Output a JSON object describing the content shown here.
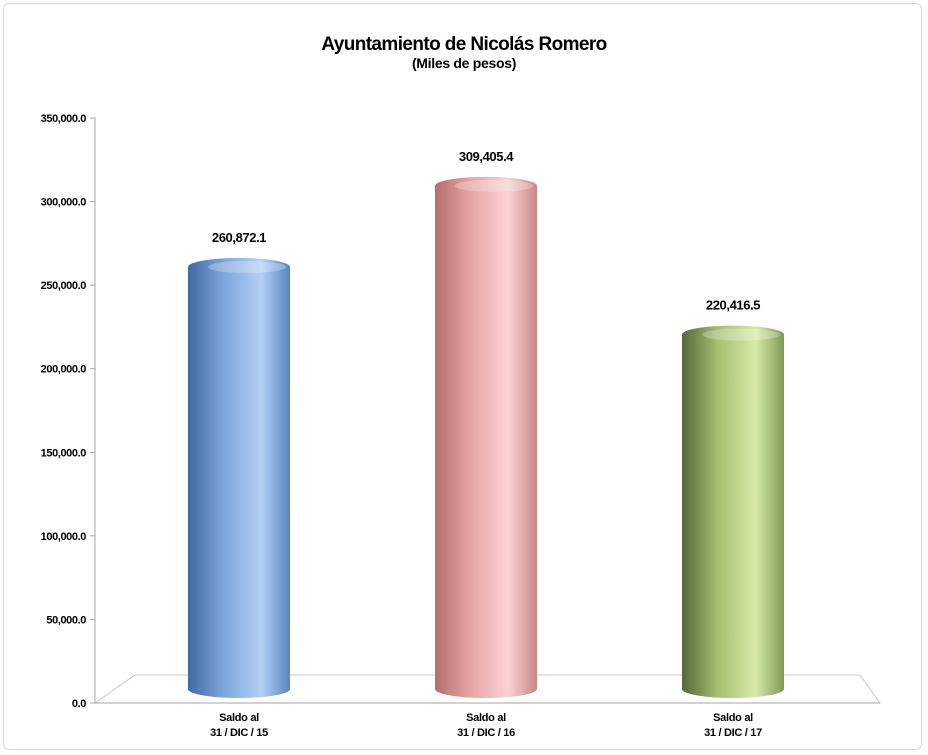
{
  "chart_data": {
    "type": "bar",
    "title": "Ayuntamiento de Nicolás Romero",
    "subtitle": "(Miles de pesos)",
    "categories": [
      [
        "Saldo al",
        "31 / DIC / 15"
      ],
      [
        "Saldo al",
        "31 / DIC / 16"
      ],
      [
        "Saldo al",
        "31 / DIC / 17"
      ]
    ],
    "values": [
      260872.1,
      309405.4,
      220416.5
    ],
    "data_labels": [
      "260,872.1",
      "309,405.4",
      "220,416.5"
    ],
    "colors": [
      "#8fb4e3",
      "#e6a5a5",
      "#bcd78b"
    ],
    "ylim": [
      0,
      350000
    ],
    "yticks": [
      0,
      50000,
      100000,
      150000,
      200000,
      250000,
      300000,
      350000
    ],
    "ytick_labels": [
      "0.0",
      "50,000.0",
      "100,000.0",
      "150,000.0",
      "200,000.0",
      "250,000.0",
      "300,000.0",
      "350,000.0"
    ],
    "grid": false,
    "legend": "none",
    "style": "3d-cylinder"
  }
}
